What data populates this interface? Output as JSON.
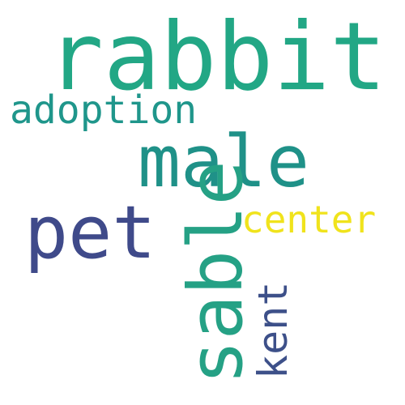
{
  "words": [
    {
      "text": "rabbit",
      "color": "#22A785"
    },
    {
      "text": "adoption",
      "color": "#1F968B"
    },
    {
      "text": "male",
      "color": "#1F9188"
    },
    {
      "text": "pet",
      "color": "#3F4A8A"
    },
    {
      "text": "sable",
      "color": "#25A185"
    },
    {
      "text": "center",
      "color": "#F0E31C"
    },
    {
      "text": "kent",
      "color": "#3D5089"
    }
  ]
}
